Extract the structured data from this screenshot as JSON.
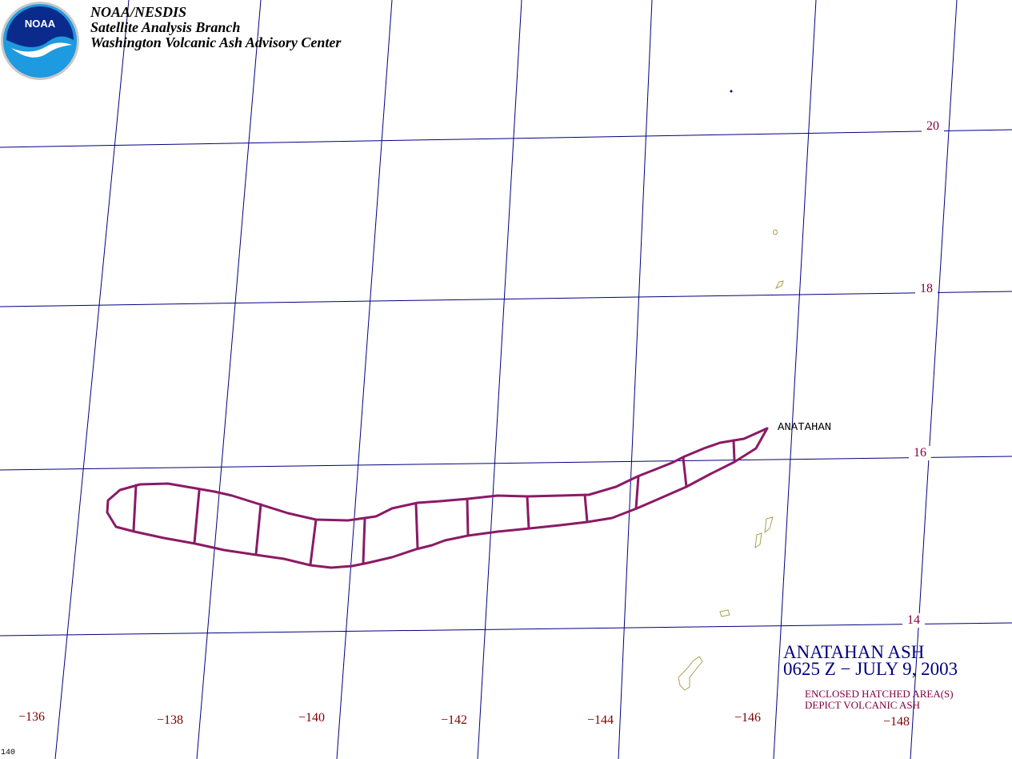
{
  "header": {
    "line1": "NOAA/NESDIS",
    "line2": "Satellite Analysis Branch",
    "line3": "Washington Volcanic Ash Advisory Center"
  },
  "logo": {
    "text": "NOAA",
    "icon": "noaa-logo"
  },
  "colors": {
    "grid": "#000080",
    "ash": "#8b1a66",
    "coast": "#a8a050",
    "lat_label": "#800040",
    "lon_label": "#800000",
    "title": "#000080"
  },
  "latitudes": [
    {
      "value": 20,
      "label": "20"
    },
    {
      "value": 18,
      "label": "18"
    },
    {
      "value": 16,
      "label": "16"
    },
    {
      "value": 14,
      "label": "14"
    }
  ],
  "longitudes": [
    {
      "value": 136,
      "label": "−136"
    },
    {
      "value": 138,
      "label": "−138"
    },
    {
      "value": 140,
      "label": "−140"
    },
    {
      "value": 142,
      "label": "−142"
    },
    {
      "value": 144,
      "label": "−144"
    },
    {
      "value": 146,
      "label": "−146"
    },
    {
      "value": 148,
      "label": "−148"
    }
  ],
  "volcano": {
    "name": "ANATAHAN"
  },
  "title": {
    "line1": "ANATAHAN ASH",
    "line2": "0625 Z − JULY 9, 2003"
  },
  "note": {
    "line1": "ENCLOSED HATCHED AREA(S)",
    "line2": "DEPICT VOLCANIC ASH"
  },
  "corner_label": "140"
}
